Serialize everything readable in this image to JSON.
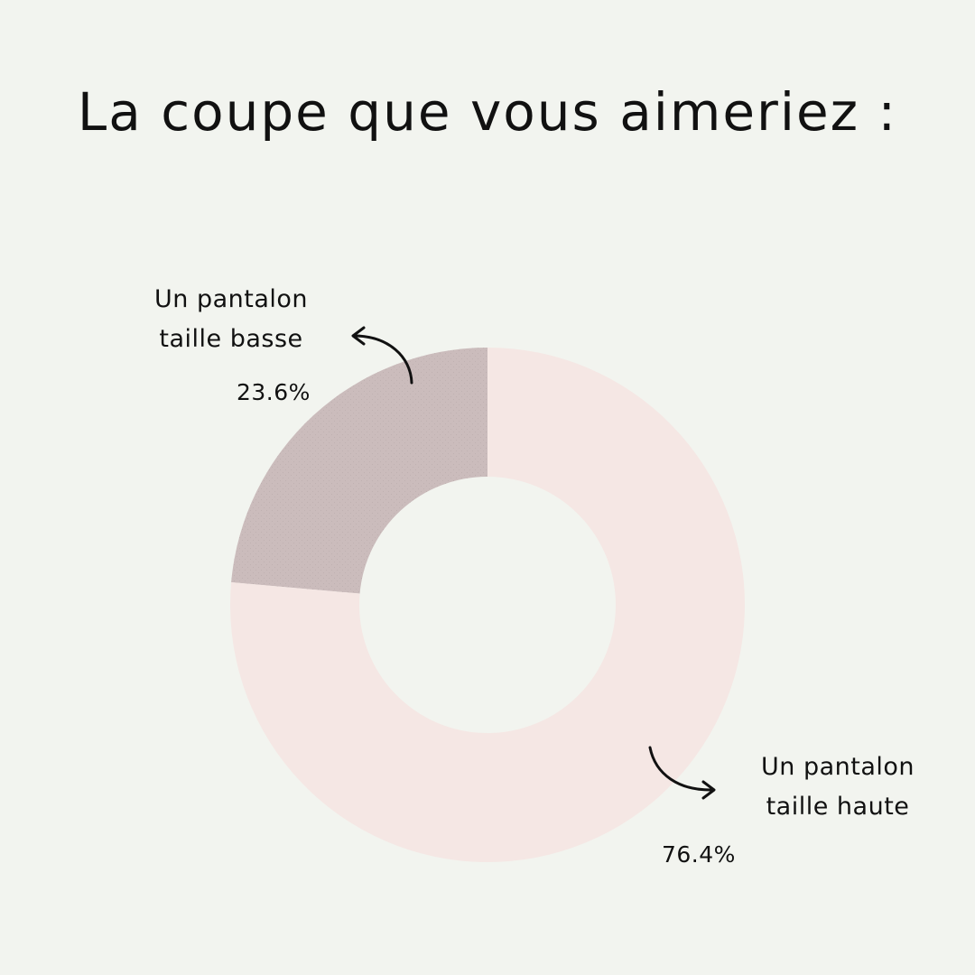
{
  "title": "La coupe que vous aimeriez :",
  "colors": {
    "background": "#f2f4ef",
    "text": "#111111"
  },
  "chart_data": {
    "type": "pie",
    "variant": "donut",
    "title": "La coupe que vous aimeriez :",
    "slices": [
      {
        "label": "Un pantalon taille basse",
        "line1": "Un pantalon",
        "line2": "taille basse",
        "value": 23.6,
        "value_label": "23.6%",
        "color": "#cbbcbc"
      },
      {
        "label": "Un pantalon taille haute",
        "line1": "Un pantalon",
        "line2": "taille haute",
        "value": 76.4,
        "value_label": "76.4%",
        "color": "#f5e7e4"
      }
    ],
    "start": "12 o'clock, counter-clockwise",
    "legend": "none"
  }
}
